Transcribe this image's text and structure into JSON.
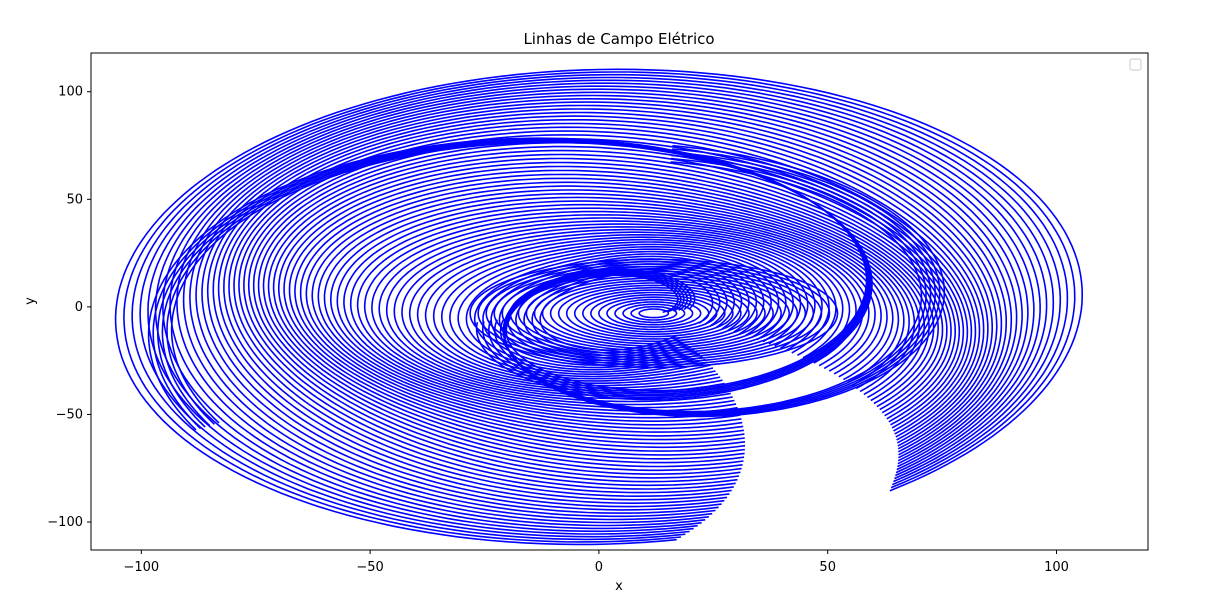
{
  "chart_data": {
    "type": "line",
    "title": "Linhas de Campo Elétrico",
    "xlabel": "x",
    "ylabel": "y",
    "xlim": [
      -111,
      120
    ],
    "ylim": [
      -113,
      118
    ],
    "xticks": [
      -100,
      -50,
      0,
      50,
      100
    ],
    "yticks": [
      -100,
      -50,
      0,
      50,
      100
    ],
    "xtick_labels": [
      "−100",
      "−50",
      "0",
      "50",
      "100"
    ],
    "ytick_labels": [
      "−100",
      "−50",
      "0",
      "50",
      "100"
    ],
    "grid": false,
    "legend": {
      "placement": "top-right",
      "entries": []
    },
    "line_color": "#0000ff",
    "structure": {
      "outer_spiral": {
        "center": [
          0,
          0
        ],
        "start_radius": 20,
        "end_radius": 105,
        "y_scale": 1.0,
        "turns": 1.05,
        "rotation_deg": 195
      },
      "inner_spiral": {
        "center": [
          12,
          -3
        ],
        "start_radius": 2,
        "end_radius": 78,
        "y_scale": 1.0,
        "turns": 1.2,
        "rotation_deg": 15
      },
      "field_line_count": 64
    }
  }
}
